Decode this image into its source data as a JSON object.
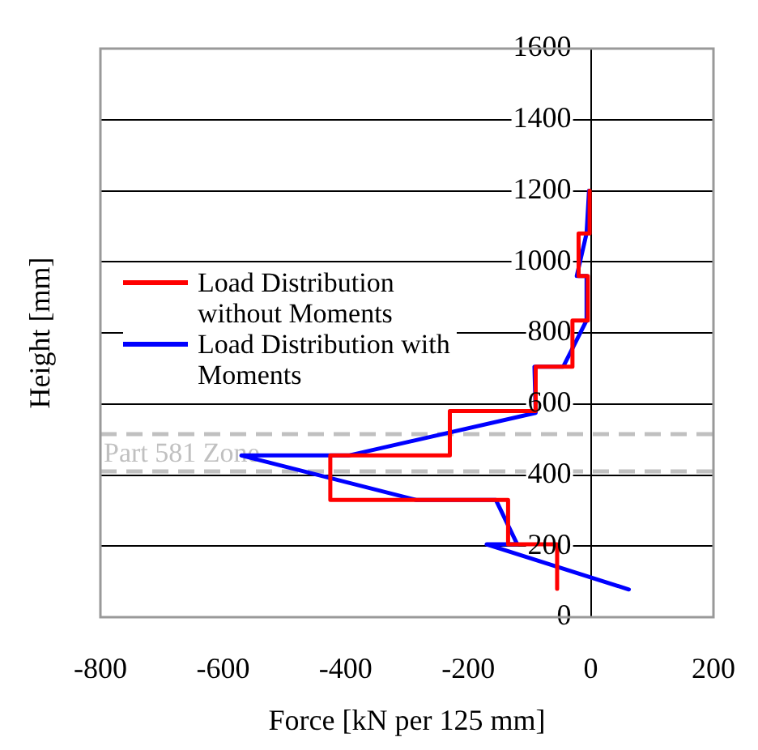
{
  "chart_data": {
    "type": "line",
    "xlabel": "Force [kN per 125 mm]",
    "ylabel": "Height [mm]",
    "xlim": [
      -800,
      200
    ],
    "xticks": [
      -800,
      -600,
      -400,
      -200,
      0,
      200
    ],
    "ylim": [
      0,
      1600
    ],
    "yticks": [
      0,
      200,
      400,
      600,
      800,
      1000,
      1200,
      1400,
      1600
    ],
    "grid": "y",
    "legend": "left",
    "marker": "none",
    "ref_lines": [
      {
        "axis": "y",
        "value": 515,
        "label": "Part 581 Zone",
        "color": "#c0c0c0",
        "line_style": "dashed"
      },
      {
        "axis": "y",
        "value": 410,
        "color": "#c0c0c0",
        "line_style": "dashed"
      }
    ],
    "series": [
      {
        "name": "Load Distribution without Moments",
        "color": "#ff0000",
        "x": [
          -55,
          -55,
          -135,
          -135,
          -425,
          -425,
          -230,
          -230,
          -90,
          -90,
          -30,
          -30,
          -5,
          -5,
          -20,
          -20,
          -2,
          -2
        ],
        "values": [
          80,
          205,
          205,
          330,
          330,
          455,
          455,
          580,
          580,
          705,
          705,
          835,
          835,
          960,
          960,
          1080,
          1080,
          1200
        ]
      },
      {
        "name": "Load Distribution with Moments",
        "color": "#0000ff",
        "x": [
          62,
          -170,
          -120,
          -155,
          -285,
          -570,
          -395,
          -90,
          -92,
          -45,
          -7,
          -7,
          -23,
          -7,
          -3
        ],
        "values": [
          78,
          205,
          205,
          330,
          330,
          455,
          455,
          575,
          705,
          705,
          835,
          960,
          960,
          1080,
          1200
        ]
      }
    ]
  }
}
